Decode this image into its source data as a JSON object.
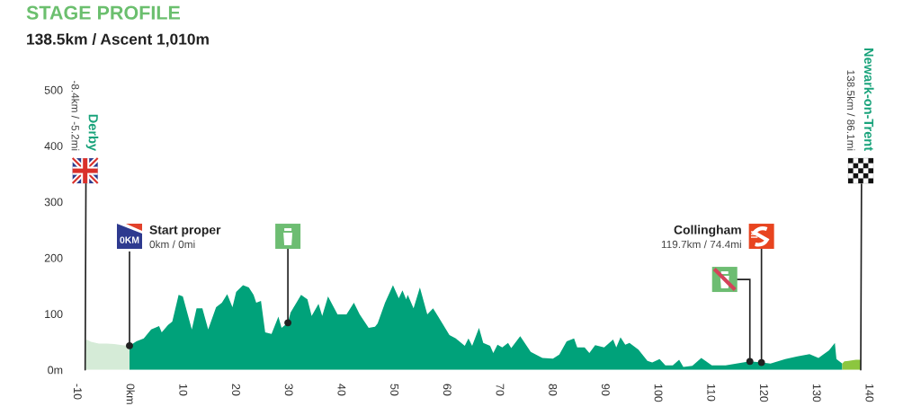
{
  "chart_data": {
    "type": "area",
    "title": "STAGE PROFILE",
    "subtitle": "138.5km / Ascent 1,010m",
    "xlim": [
      -10,
      140
    ],
    "xticks": [
      -10,
      {
        "value": 0,
        "label": "0km"
      },
      10,
      20,
      30,
      40,
      50,
      60,
      70,
      80,
      90,
      100,
      110,
      120,
      130,
      140
    ],
    "ylim": [
      0,
      500
    ],
    "yticks": [
      {
        "value": 0,
        "label": "0m"
      },
      100,
      200,
      300,
      400,
      500
    ],
    "grid": false,
    "series": [
      {
        "color": "#d5ebd7",
        "x": [
          -8.4,
          -8.1,
          -7.3,
          -5.8,
          -4.3,
          -2.9,
          -1.4,
          0
        ],
        "values": [
          51,
          54,
          50,
          47,
          47,
          46,
          44,
          43
        ]
      },
      {
        "color": "#00a27a",
        "x": [
          0,
          1.3,
          2.7,
          4.1,
          5.6,
          6.1,
          7.3,
          8.1,
          9.3,
          10.1,
          11.8,
          12.7,
          13.8,
          14.9,
          16.4,
          17.5,
          18.5,
          19.5,
          20.2,
          21.5,
          22.6,
          23.5,
          24.0,
          24.9,
          25.7,
          26.9,
          28.2,
          28.8,
          30,
          30.5,
          32.5,
          33.7,
          34.5,
          35.8,
          36.5,
          37.6,
          39.4,
          41.1,
          42.5,
          43.6,
          45.3,
          46.5,
          47.0,
          48.4,
          49.9,
          51.0,
          51.7,
          52.4,
          52.7,
          53.8,
          55.0,
          56.4,
          57.5,
          58.4,
          60.6,
          61.8,
          63.5,
          64.2,
          64.9,
          66.2,
          67.0,
          68.3,
          68.9,
          69.7,
          70.6,
          71.7,
          72.3,
          74.0,
          76.0,
          78.2,
          80.2,
          81.4,
          82.8,
          84.2,
          84.8,
          86.2,
          87.1,
          88.2,
          89.9,
          91.6,
          92.2,
          93.0,
          93.9,
          94.7,
          96.4,
          98.1,
          99.0,
          100.4,
          101.5,
          102.9,
          104.1,
          104.9,
          106.6,
          108.3,
          110.3,
          112.9,
          117.5,
          119.7,
          121.4,
          124.2,
          126.5,
          128.8,
          130.5,
          132.5,
          133.6,
          133.9,
          135.0
        ],
        "values": [
          43,
          51,
          56,
          72,
          78,
          67,
          80,
          86,
          134,
          131,
          72,
          110,
          110,
          72,
          112,
          120,
          135,
          112,
          139,
          151,
          147,
          134,
          120,
          123,
          67,
          64,
          95,
          75,
          84,
          102,
          134,
          126,
          96,
          118,
          96,
          131,
          99,
          99,
          120,
          99,
          75,
          77,
          83,
          120,
          151,
          128,
          142,
          126,
          134,
          110,
          147,
          99,
          110,
          96,
          62,
          56,
          43,
          56,
          43,
          75,
          48,
          43,
          30,
          45,
          40,
          48,
          39,
          60,
          32,
          21,
          20,
          27,
          51,
          56,
          40,
          40,
          30,
          44,
          40,
          54,
          40,
          58,
          45,
          48,
          36,
          16,
          13,
          19,
          8,
          8,
          18,
          5,
          7,
          21,
          8,
          8,
          15,
          13,
          11,
          19,
          24,
          28,
          21,
          35,
          48,
          19,
          11
        ]
      },
      {
        "color": "#8cc63f",
        "x": [
          135.0,
          135.4,
          136.2,
          137.0,
          137.6,
          138.5
        ],
        "values": [
          11,
          15,
          16,
          17,
          18,
          18
        ]
      },
      {
        "type": "scatter",
        "color": "#222222",
        "marker": "circle",
        "x": [
          0,
          30,
          117.5,
          119.7
        ],
        "values": [
          43,
          84,
          15,
          13
        ]
      }
    ],
    "annotations": [
      {
        "text": "Derby",
        "x": -8.4,
        "y": 0
      },
      "-8.4km / -5.2mi",
      "Start proper",
      "0km / 0mi",
      "Collingham",
      "119.7km / 74.4mi",
      {
        "text": "Newark-on-Trent",
        "x": 138.5,
        "y": 0
      },
      "138.5km / 86.1mi",
      {
        "text": "0KM",
        "x": 0,
        "y": 43
      }
    ]
  }
}
